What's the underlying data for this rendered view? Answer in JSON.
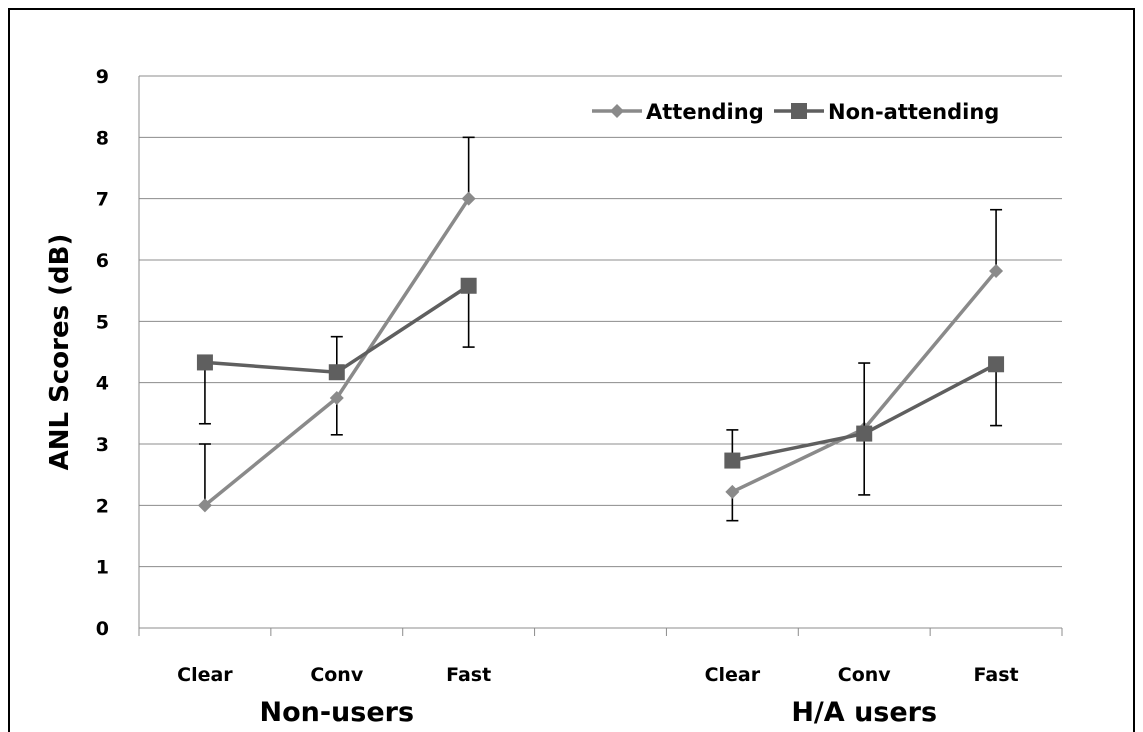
{
  "chart_data": {
    "type": "line",
    "ylabel": "ANL Scores (dB)",
    "ylim": [
      0,
      9
    ],
    "yticks": [
      "0",
      "1",
      "2",
      "3",
      "4",
      "5",
      "6",
      "7",
      "8",
      "9"
    ],
    "grid": true,
    "legend_position": "top-right",
    "groups": [
      {
        "name": "Non-users",
        "categories": [
          "Clear",
          "Conv",
          "Fast"
        ]
      },
      {
        "name": "H/A users",
        "categories": [
          "Clear",
          "Conv",
          "Fast"
        ]
      }
    ],
    "series": [
      {
        "name": "Attending",
        "marker": "diamond",
        "color": "#8a8a8a",
        "groups": [
          {
            "values": [
              2.0,
              3.75,
              7.0
            ],
            "err_up": [
              1.0,
              null,
              1.0
            ],
            "err_down": [
              null,
              0.6,
              null
            ]
          },
          {
            "values": [
              2.22,
              3.25,
              5.82
            ],
            "err_up": [
              null,
              null,
              1.0
            ],
            "err_down": [
              0.47,
              null,
              null
            ]
          }
        ]
      },
      {
        "name": "Non-attending",
        "marker": "square",
        "color": "#5f5f5f",
        "groups": [
          {
            "values": [
              4.33,
              4.17,
              5.58
            ],
            "err_up": [
              null,
              0.58,
              null
            ],
            "err_down": [
              1.0,
              null,
              1.0
            ]
          },
          {
            "values": [
              2.73,
              3.17,
              4.3
            ],
            "err_up": [
              0.5,
              1.15,
              null
            ],
            "err_down": [
              null,
              1.0,
              1.0
            ]
          }
        ]
      }
    ]
  }
}
